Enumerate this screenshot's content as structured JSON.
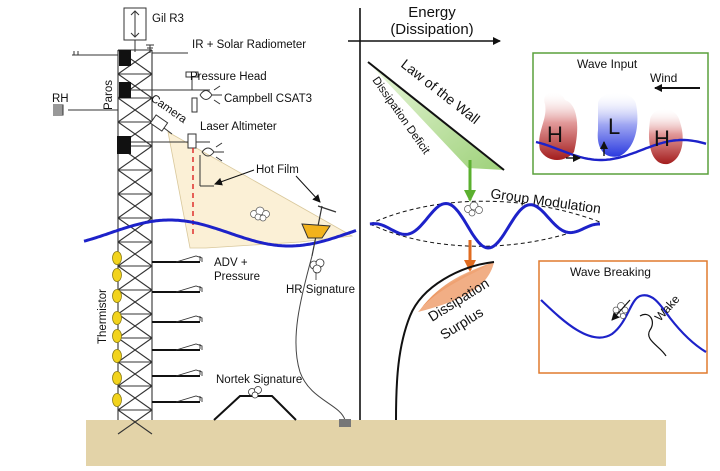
{
  "instruments": {
    "gill": "Gil R3",
    "ir_solar": "IR + Solar Radiometer",
    "paros": "Paros",
    "rh": "RH",
    "pressure_head": "Pressure Head",
    "csat": "Campbell CSAT3",
    "camera": "Camera",
    "laser": "Laser Altimeter",
    "hot_film": "Hot Film",
    "adv_line1": "ADV +",
    "adv_line2": "Pressure",
    "hr_signature": "HR Signature",
    "thermistor": "Thermistor",
    "nortek": "Nortek Signature"
  },
  "energy_panel": {
    "title_line1": "Energy",
    "title_line2": "(Dissipation)",
    "law_of_wall": "Law of the Wall",
    "deficit": "Dissipation Deficit",
    "group_modulation": "Group Modulation",
    "surplus_line1": "Dissipation",
    "surplus_line2": "Surplus"
  },
  "wave_input": {
    "title": "Wave Input",
    "wind": "Wind",
    "high_left": "H",
    "low": "L",
    "high_right": "H"
  },
  "wave_breaking": {
    "title": "Wave Breaking",
    "wake": "Wake"
  },
  "colors": {
    "wave": "#1d22c9",
    "wave_input_border": "#5aa03c",
    "wave_breaking_border": "#e07a2e",
    "green_arrow": "#5bb02f",
    "orange_arrow": "#e06b1f",
    "seabed": "#e3d3a8",
    "deficit_fill": "#bfe3a3",
    "surplus_fill": "#f2b38c",
    "camera_fov": "#fbf0d6"
  }
}
